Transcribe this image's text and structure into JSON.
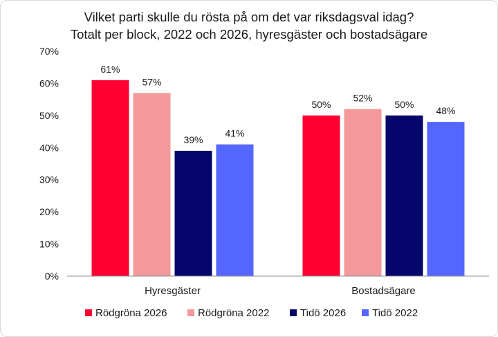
{
  "chart_data": {
    "type": "bar",
    "title": "Vilket parti skulle du rösta på om det var riksdagsval idag?",
    "subtitle": "Totalt per block, 2022 och 2026, hyresgäster och bostadsägare",
    "categories": [
      "Hyresgäster",
      "Bostadsägare"
    ],
    "series": [
      {
        "name": "Rödgröna 2026",
        "color": "#ff0033",
        "values": [
          61,
          50
        ],
        "labels": [
          "61%",
          "50%"
        ]
      },
      {
        "name": "Rödgröna 2022",
        "color": "#f4999b",
        "values": [
          57,
          52
        ],
        "labels": [
          "57%",
          "52%"
        ]
      },
      {
        "name": "Tidö 2026",
        "color": "#06056b",
        "values": [
          39,
          50
        ],
        "labels": [
          "39%",
          "50%"
        ]
      },
      {
        "name": "Tidö 2022",
        "color": "#5566ff",
        "values": [
          41,
          48
        ],
        "labels": [
          "41%",
          "48%"
        ]
      }
    ],
    "ylim": [
      0,
      70
    ],
    "yticks": [
      0,
      10,
      20,
      30,
      40,
      50,
      60,
      70
    ],
    "ytick_labels": [
      "0%",
      "10%",
      "20%",
      "30%",
      "40%",
      "50%",
      "60%",
      "70%"
    ],
    "xlabel": "",
    "ylabel": "",
    "grid": false,
    "legend_position": "bottom"
  }
}
